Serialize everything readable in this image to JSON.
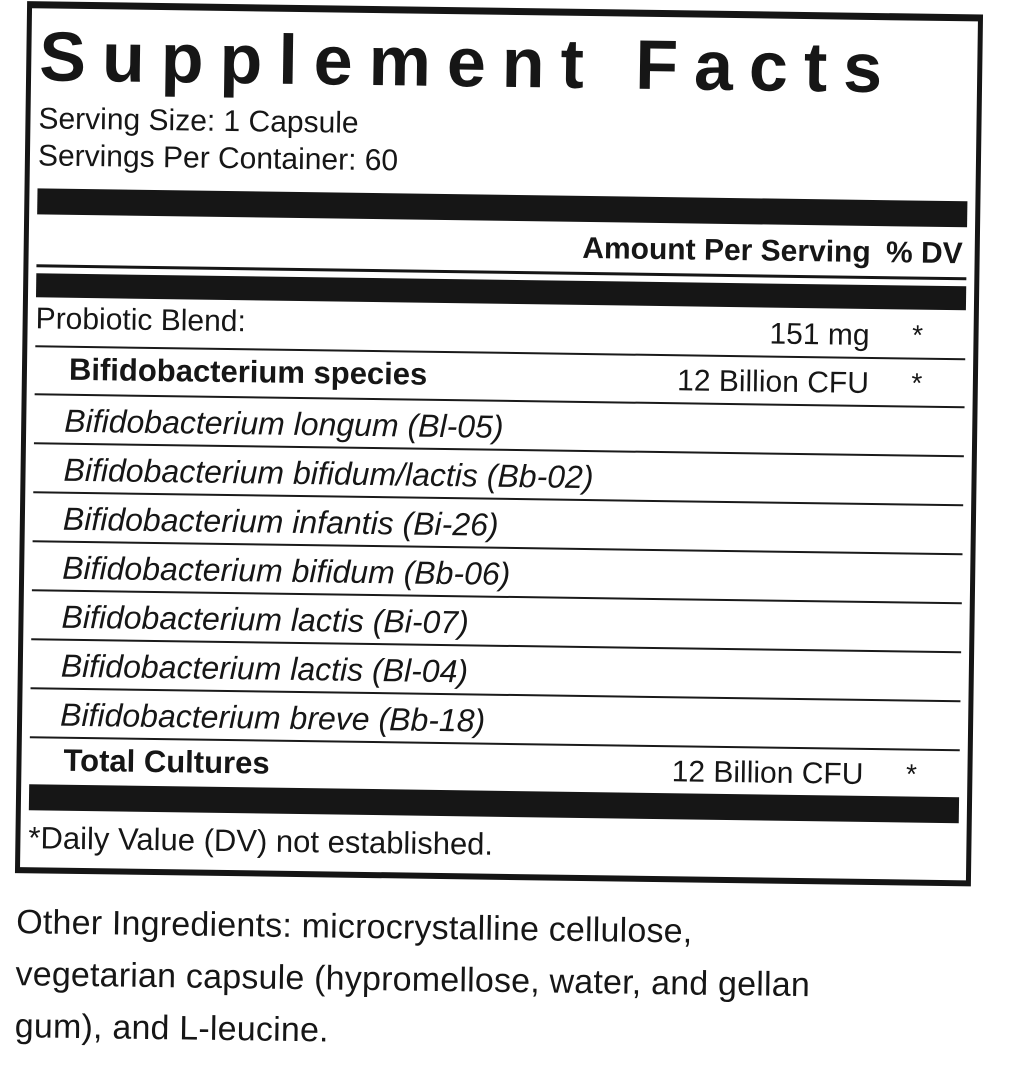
{
  "colors": {
    "ink": "#161616",
    "paper": "#ffffff"
  },
  "panel": {
    "title": "Supplement Facts",
    "serving_size": "Serving Size: 1 Capsule",
    "servings_per_container": "Servings Per Container: 60",
    "columns": {
      "amount": "Amount Per Serving",
      "dv": "% DV"
    },
    "rows": [
      {
        "name": "Probiotic Blend:",
        "amount": "151 mg",
        "dv": "*"
      },
      {
        "name": "Bifidobacterium species",
        "amount": "12 Billion CFU",
        "dv": "*"
      },
      {
        "name": "Bifidobacterium longum (Bl-05)",
        "amount": "",
        "dv": ""
      },
      {
        "name": "Bifidobacterium bifidum/lactis (Bb-02)",
        "amount": "",
        "dv": ""
      },
      {
        "name": "Bifidobacterium infantis (Bi-26)",
        "amount": "",
        "dv": ""
      },
      {
        "name": "Bifidobacterium bifidum (Bb-06)",
        "amount": "",
        "dv": ""
      },
      {
        "name": "Bifidobacterium lactis (Bi-07)",
        "amount": "",
        "dv": ""
      },
      {
        "name": "Bifidobacterium lactis (Bl-04)",
        "amount": "",
        "dv": ""
      },
      {
        "name": "Bifidobacterium breve (Bb-18)",
        "amount": "",
        "dv": ""
      },
      {
        "name": "Total Cultures",
        "amount": "12 Billion CFU",
        "dv": "*"
      }
    ],
    "footnote": "*Daily Value (DV) not established."
  },
  "other_ingredients": {
    "line1": "Other Ingredients: microcrystalline cellulose,",
    "line2": "vegetarian capsule (hypromellose, water, and gellan",
    "line3": "gum), and L-leucine."
  }
}
